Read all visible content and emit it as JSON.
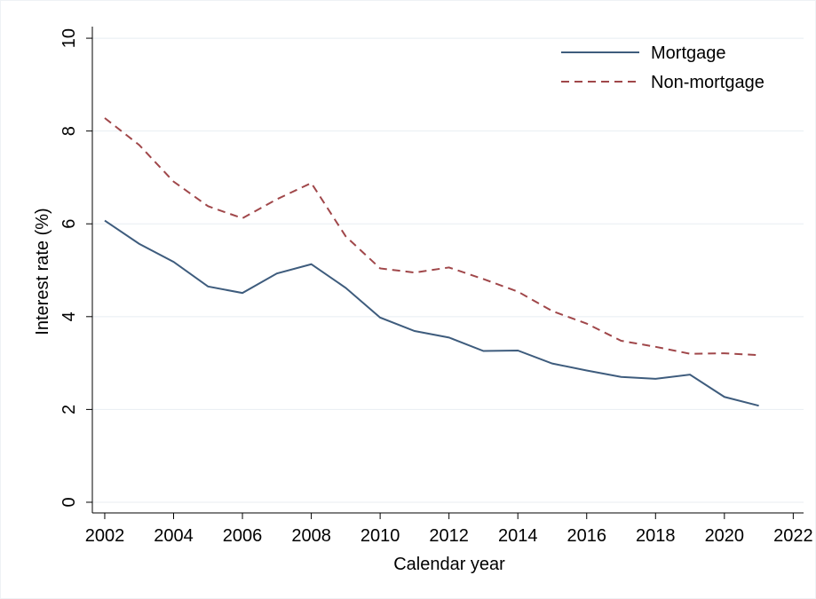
{
  "chart_data": {
    "type": "line",
    "x_label": "Calendar year",
    "y_label": "Interest rate (%)",
    "x": [
      2002,
      2003,
      2004,
      2005,
      2006,
      2007,
      2008,
      2009,
      2010,
      2011,
      2012,
      2013,
      2014,
      2015,
      2016,
      2017,
      2018,
      2019,
      2020,
      2021
    ],
    "series": [
      {
        "name": "Mortgage",
        "color": "#3e5c7d",
        "dash": false,
        "values": [
          6.07,
          5.57,
          5.18,
          4.65,
          4.51,
          4.93,
          5.13,
          4.62,
          3.98,
          3.69,
          3.55,
          3.26,
          3.27,
          2.99,
          2.84,
          2.7,
          2.66,
          2.75,
          2.27,
          2.08
        ]
      },
      {
        "name": "Non-mortgage",
        "color": "#a0474a",
        "dash": true,
        "values": [
          8.28,
          7.7,
          6.91,
          6.38,
          6.12,
          6.53,
          6.88,
          5.73,
          5.04,
          4.95,
          5.06,
          4.81,
          4.54,
          4.12,
          3.85,
          3.48,
          3.35,
          3.2,
          3.21,
          3.17
        ]
      }
    ],
    "xlim": [
      2001.64,
      2022.3
    ],
    "xticks": [
      2002,
      2004,
      2006,
      2008,
      2010,
      2012,
      2014,
      2016,
      2018,
      2020,
      2022
    ],
    "ylim": [
      -0.23,
      10.25
    ],
    "yticks": [
      0,
      2,
      4,
      6,
      8,
      10
    ],
    "grid": true,
    "legend": "upper right"
  }
}
